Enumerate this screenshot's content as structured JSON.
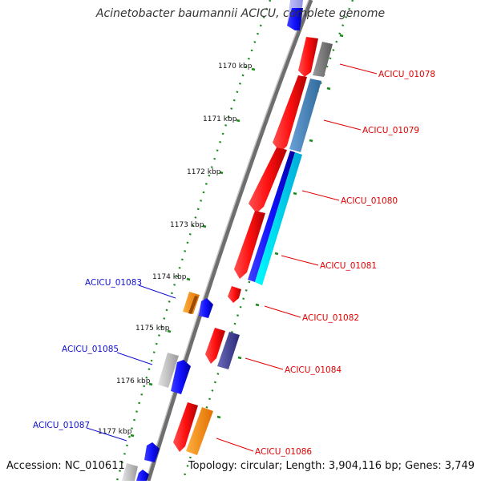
{
  "title": "Acinetobacter baumannii ACICU, complete genome",
  "footer": {
    "accession": "Accession: NC_010611",
    "summary": "Topology: circular; Length: 3,904,116 bp; Genes: 3,749"
  },
  "tick_labels": [
    "1170 kbp",
    "1171 kbp",
    "1172 kbp",
    "1173 kbp",
    "1174 kbp",
    "1175 kbp",
    "1176 kbp",
    "1177 kbp"
  ],
  "colors": {
    "red": "#ff1a1a",
    "blue": "#1a1aff",
    "gray": "#7a7a7a",
    "steelblue": "#4a86c0",
    "cyan": "#22ddff",
    "orange": "#ff9a1a",
    "lightgray": "#c8c8c8",
    "purple": "#4a4aa0",
    "label_red": "#e00000",
    "label_blue": "#1010d0",
    "ruler_green": "#1a8a1a"
  },
  "gene_labels": [
    {
      "id": "ACICU_01078",
      "strand": "outer"
    },
    {
      "id": "ACICU_01079",
      "strand": "outer"
    },
    {
      "id": "ACICU_01080",
      "strand": "outer"
    },
    {
      "id": "ACICU_01081",
      "strand": "outer"
    },
    {
      "id": "ACICU_01082",
      "strand": "outer"
    },
    {
      "id": "ACICU_01083",
      "strand": "inner"
    },
    {
      "id": "ACICU_01084",
      "strand": "outer"
    },
    {
      "id": "ACICU_01085",
      "strand": "inner"
    },
    {
      "id": "ACICU_01086",
      "strand": "outer"
    },
    {
      "id": "ACICU_01087",
      "strand": "inner"
    }
  ]
}
